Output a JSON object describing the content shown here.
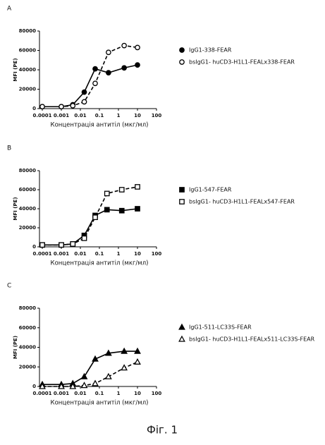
{
  "chart_data": [
    {
      "type": "line",
      "label": "A",
      "y_label": "MFI (PE)",
      "x_label": "Концентрація антитіл (мкг/мл)",
      "log_x": true,
      "xlim": [
        0.0001,
        100
      ],
      "xticks": [
        0.0001,
        0.001,
        0.01,
        0.1,
        1,
        10,
        100
      ],
      "ylim": [
        0,
        80000
      ],
      "yticks": [
        0,
        20000,
        40000,
        60000,
        80000
      ],
      "x": [
        0.0001,
        0.001,
        0.004,
        0.016,
        0.06,
        0.3,
        2,
        10
      ],
      "series": [
        {
          "name": "IgG1-338-FEAR",
          "color": "#000000",
          "marker": "circle",
          "filled": true,
          "dashed": false,
          "values": [
            2000,
            2000,
            4000,
            17000,
            41000,
            37000,
            42000,
            45000
          ]
        },
        {
          "name": "bsIgG1- huCD3-H1L1-FEALx338-FEAR",
          "color": "#000000",
          "marker": "circle",
          "filled": false,
          "dashed": true,
          "values": [
            2000,
            2000,
            3000,
            7000,
            26000,
            58000,
            65000,
            63000
          ]
        }
      ]
    },
    {
      "type": "line",
      "label": "B",
      "y_label": "MFI (PE)",
      "x_label": "Концентрація антитіл (мкг/мл)",
      "log_x": true,
      "xlim": [
        0.0001,
        100
      ],
      "xticks": [
        0.0001,
        0.001,
        0.01,
        0.1,
        1,
        10,
        100
      ],
      "ylim": [
        0,
        80000
      ],
      "yticks": [
        0,
        20000,
        40000,
        60000,
        80000
      ],
      "x": [
        0.0001,
        0.001,
        0.004,
        0.016,
        0.06,
        0.25,
        1.5,
        10
      ],
      "series": [
        {
          "name": "IgG1-547-FEAR",
          "color": "#000000",
          "marker": "square",
          "filled": true,
          "dashed": false,
          "values": [
            2000,
            2000,
            3000,
            12000,
            33000,
            39000,
            38000,
            40000
          ]
        },
        {
          "name": "bsIgG1- huCD3-H1L1-FEALx547-FEAR",
          "color": "#000000",
          "marker": "square",
          "filled": false,
          "dashed": true,
          "values": [
            2000,
            2000,
            3000,
            9000,
            31000,
            56000,
            60000,
            63000
          ]
        }
      ]
    },
    {
      "type": "line",
      "label": "C",
      "y_label": "MFI (PE)",
      "x_label": "Концентрація антитіл (мкг/мл)",
      "log_x": true,
      "xlim": [
        0.0001,
        100
      ],
      "xticks": [
        0.0001,
        0.001,
        0.01,
        0.1,
        1,
        10,
        100
      ],
      "ylim": [
        0,
        80000
      ],
      "yticks": [
        0,
        20000,
        40000,
        60000,
        80000
      ],
      "x": [
        0.0001,
        0.001,
        0.004,
        0.016,
        0.06,
        0.3,
        2,
        10
      ],
      "series": [
        {
          "name": "IgG1-511-LC33S-FEAR",
          "color": "#000000",
          "marker": "triangle",
          "filled": true,
          "dashed": false,
          "values": [
            2000,
            2000,
            3000,
            10000,
            28000,
            34000,
            36000,
            36000
          ]
        },
        {
          "name": "bsIgG1- huCD3-H1L1-FEALx511-LC33S-FEAR",
          "color": "#000000",
          "marker": "triangle",
          "filled": false,
          "dashed": true,
          "values": [
            0,
            0,
            0,
            1000,
            3000,
            10000,
            19000,
            25000
          ]
        }
      ]
    }
  ],
  "caption": "Фіг. 1"
}
